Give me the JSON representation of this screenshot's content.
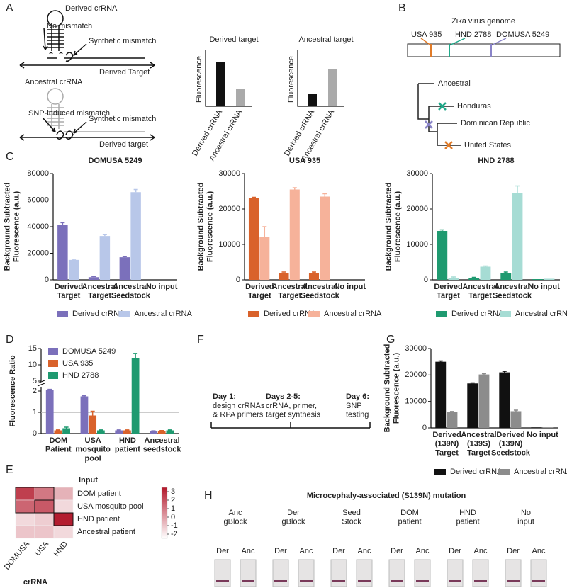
{
  "panel_labels": [
    "A",
    "B",
    "C",
    "D",
    "E",
    "F",
    "G",
    "H"
  ],
  "panel_a": {
    "derived_crrna": "Derived crRNA",
    "no_mismatch": "No mismatch",
    "synthetic_mismatch_1": "Synthetic mismatch",
    "derived_target_1": "Derived Target",
    "ancestral_crrna": "Ancestral crRNA",
    "snp_mismatch": "SNP-induced mismatch",
    "synthetic_mismatch_2": "Synthetic mismatch",
    "derived_target_2": "Derived target",
    "plot_1_title": "Derived target",
    "plot_2_title": "Ancestral target",
    "y_label_1": "Fluorescence",
    "y_label_2": "Fluorescence",
    "x_1a": "Derived crRNA",
    "x_1b": "Ancestral crRNA",
    "x_2a": "Derived crRNA",
    "x_2b": "Ancestral crRNA"
  },
  "panel_b": {
    "title": "Zika virus genome",
    "strains": [
      {
        "name": "USA 935",
        "color": "#e07b28"
      },
      {
        "name": "HND 2788",
        "color": "#21a98a"
      },
      {
        "name": "DOMUSA 5249",
        "color": "#8a84c8"
      }
    ],
    "tree": [
      {
        "name": "Ancestral",
        "color": "#222222"
      },
      {
        "name": "Honduras",
        "color": "#21a98a"
      },
      {
        "name": "Dominican Republic",
        "color": "#2aa4d8"
      },
      {
        "name": "United States",
        "color": "#e07b28"
      }
    ]
  },
  "panel_f": {
    "day1": "Day 1:",
    "day1_text": "design crRNAs\n& RPA primers",
    "day2": "Days 2-5:",
    "day2_text": "crRNA, primer,\ntarget synthesis",
    "day6": "Day 6:",
    "day6_text": "SNP\ntesting"
  },
  "panel_h": {
    "title": "Microcephaly-associated (S139N) mutation",
    "groups": [
      {
        "label": "Anc\ngBlock",
        "lanes": [
          "Der",
          "Anc"
        ]
      },
      {
        "label": "Der\ngBlock",
        "lanes": [
          "Der",
          "Anc"
        ]
      },
      {
        "label": "Seed\nStock",
        "lanes": [
          "Der",
          "Anc"
        ]
      },
      {
        "label": "DOM\npatient",
        "lanes": [
          "Der",
          "Anc"
        ]
      },
      {
        "label": "HND\npatient",
        "lanes": [
          "Der",
          "Anc"
        ]
      },
      {
        "label": "No\ninput",
        "lanes": [
          "Der",
          "Anc"
        ]
      }
    ]
  },
  "chart_data": [
    {
      "type": "bar",
      "title": "DOMUSA 5249",
      "y_label": "Background Subtracted\nFluorescence (a.u.)",
      "categories": [
        "Derived\nTarget",
        "Ancestral\nTarget",
        "Ancestral\nSeedstock",
        "No input"
      ],
      "series": [
        {
          "name": "Derived crRNA",
          "color": "#7b70bb",
          "values": [
            41500,
            2000,
            17000,
            0
          ],
          "errors": [
            1500,
            500,
            500,
            0
          ]
        },
        {
          "name": "Ancestral crRNA",
          "color": "#b8c7e9",
          "values": [
            15000,
            33000,
            66000,
            0
          ],
          "errors": [
            500,
            1000,
            2000,
            0
          ]
        }
      ],
      "ylim": [
        0,
        80000
      ],
      "yticks": [
        0,
        20000,
        40000,
        60000,
        80000
      ],
      "legend": "bottom"
    },
    {
      "type": "bar",
      "title": "USA 935",
      "y_label": "Background Subtracted\nFluorescence (a.u.)",
      "categories": [
        "Derived\nTarget",
        "Ancestral\nTarget",
        "Ancestral\nSeedstock",
        "No input"
      ],
      "series": [
        {
          "name": "Derived crRNA",
          "color": "#d9622b",
          "values": [
            23000,
            2000,
            2000,
            0
          ],
          "errors": [
            300,
            200,
            200,
            0
          ]
        },
        {
          "name": "Ancestral crRNA",
          "color": "#f6b29a",
          "values": [
            12000,
            25500,
            23500,
            0
          ],
          "errors": [
            3000,
            500,
            800,
            0
          ]
        }
      ],
      "ylim": [
        0,
        30000
      ],
      "yticks": [
        0,
        10000,
        20000,
        30000
      ],
      "legend": "bottom"
    },
    {
      "type": "bar",
      "title": "HND 2788",
      "y_label": "Background Subtracted\nFluorescence (a.u.)",
      "categories": [
        "Derived\nTarget",
        "Ancestral\nTarget",
        "Ancestral\nSeedstock",
        "No input"
      ],
      "series": [
        {
          "name": "Derived crRNA",
          "color": "#1f9a70",
          "values": [
            13800,
            500,
            2000,
            200
          ],
          "errors": [
            300,
            200,
            200,
            0
          ]
        },
        {
          "name": "Ancestral crRNA",
          "color": "#a6dcd4",
          "values": [
            500,
            3700,
            24500,
            300
          ],
          "errors": [
            300,
            200,
            2000,
            0
          ]
        }
      ],
      "ylim": [
        0,
        30000
      ],
      "yticks": [
        0,
        10000,
        20000,
        30000
      ],
      "legend": "bottom"
    },
    {
      "type": "bar",
      "y_label": "Fluorescence Ratio",
      "categories": [
        "DOM\nPatient",
        "USA\nmosquito\npool",
        "HND\npatient",
        "Ancestral\nseedstock"
      ],
      "series": [
        {
          "name": "DOMUSA 5249",
          "color": "#7b70bb",
          "values": [
            2.05,
            1.75,
            0.15,
            0.12
          ],
          "errors": [
            0.03,
            0.03,
            0.02,
            0.01
          ]
        },
        {
          "name": "USA 935",
          "color": "#d9622b",
          "values": [
            0.15,
            0.85,
            0.15,
            0.13
          ],
          "errors": [
            0.02,
            0.2,
            0.02,
            0.01
          ]
        },
        {
          "name": "HND 2788",
          "color": "#1f9a70",
          "values": [
            0.25,
            0.15,
            12,
            0.15
          ],
          "errors": [
            0.05,
            0.02,
            1.5,
            0.02
          ]
        }
      ],
      "ylim": [
        0,
        15
      ],
      "ybreak": [
        2.2,
        5
      ],
      "yticks": [
        0,
        1,
        2,
        5,
        10,
        15
      ],
      "hline": 1,
      "legend": "top-left"
    },
    {
      "type": "bar",
      "y_label": "Background Subtracted\nFluorescence (a.u.)",
      "categories": [
        "Derived\n(139N)\nTarget",
        "Ancestral\n(139S)\nTarget",
        "Derived\n(139N)\nSeedstock",
        "No input"
      ],
      "series": [
        {
          "name": "Derived crRNA",
          "color": "#111111",
          "values": [
            25000,
            16800,
            21000,
            200
          ],
          "errors": [
            300,
            200,
            400,
            0
          ]
        },
        {
          "name": "Ancestral crRNA",
          "color": "#8c8c8c",
          "values": [
            6000,
            20200,
            6300,
            200
          ],
          "errors": [
            200,
            300,
            400,
            0
          ]
        }
      ],
      "ylim": [
        0,
        30000
      ],
      "yticks": [
        0,
        10000,
        20000,
        30000
      ],
      "legend": "bottom"
    },
    {
      "type": "heatmap",
      "title": "Input",
      "x_label": "crRNA",
      "rows": [
        "DOM patient",
        "USA mosquito pool",
        "HND patient",
        "Ancestral patient"
      ],
      "columns": [
        "DOMUSA",
        "USA",
        "HND"
      ],
      "values": [
        [
          2.5,
          1.0,
          -0.5
        ],
        [
          1.5,
          1.8,
          -1.5
        ],
        [
          -1.5,
          -1.2,
          3.4
        ],
        [
          -1.0,
          -1.0,
          -1.5
        ]
      ],
      "clim": [
        -2.5,
        3.5
      ],
      "cticks": [
        3,
        2,
        1,
        0,
        -1,
        -2
      ],
      "colors": [
        "#ffffff",
        "#b2182b"
      ]
    }
  ]
}
